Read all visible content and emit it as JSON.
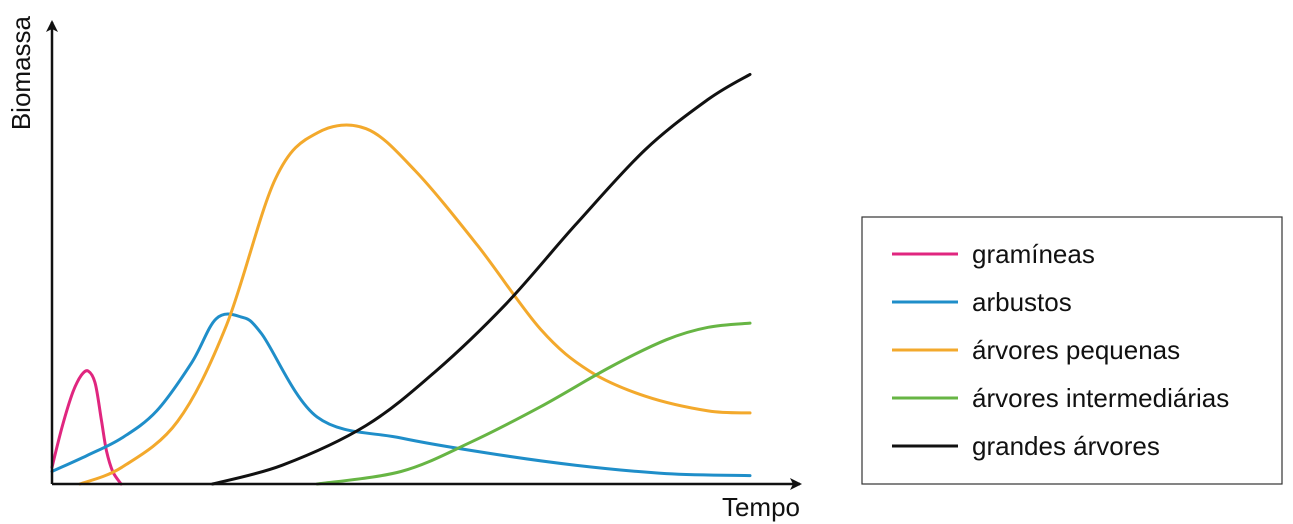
{
  "chart_data": {
    "type": "line",
    "title": "",
    "xlabel": "Tempo",
    "ylabel": "Biomassa",
    "grid": false,
    "ticks": false,
    "legend_position": "right",
    "xlim": [
      0,
      100
    ],
    "ylim": [
      0,
      100
    ],
    "series": [
      {
        "name": "gramíneas",
        "color": "#e0267f",
        "points": [
          [
            0,
            4
          ],
          [
            1.5,
            14
          ],
          [
            3,
            22
          ],
          [
            4.2,
            26
          ],
          [
            5.2,
            27
          ],
          [
            6.2,
            24
          ],
          [
            7.1,
            15
          ],
          [
            7.8,
            8
          ],
          [
            8.7,
            3
          ],
          [
            9.9,
            0
          ]
        ]
      },
      {
        "name": "arbustos",
        "color": "#1f8ec9",
        "points": [
          [
            0,
            3
          ],
          [
            5,
            6.8
          ],
          [
            10,
            11
          ],
          [
            15,
            17.5
          ],
          [
            20,
            29
          ],
          [
            23.5,
            39.5
          ],
          [
            27,
            40
          ],
          [
            30,
            36
          ],
          [
            38,
            16
          ],
          [
            50,
            11
          ],
          [
            62,
            7.5
          ],
          [
            75,
            4.5
          ],
          [
            88,
            2.5
          ],
          [
            100,
            2
          ]
        ]
      },
      {
        "name": "árvores pequenas",
        "color": "#f3a92c",
        "points": [
          [
            4,
            0
          ],
          [
            10,
            4
          ],
          [
            18,
            15
          ],
          [
            25,
            38
          ],
          [
            32,
            73
          ],
          [
            38,
            84
          ],
          [
            45,
            85
          ],
          [
            52,
            75
          ],
          [
            61,
            57
          ],
          [
            70,
            37
          ],
          [
            77,
            27
          ],
          [
            85,
            21
          ],
          [
            94,
            17.5
          ],
          [
            100,
            17
          ]
        ]
      },
      {
        "name": "árvores intermediárias",
        "color": "#67b544",
        "points": [
          [
            38,
            0
          ],
          [
            50,
            3
          ],
          [
            60,
            10
          ],
          [
            70,
            18.5
          ],
          [
            80,
            28
          ],
          [
            88,
            34.5
          ],
          [
            94,
            37.5
          ],
          [
            100,
            38.5
          ]
        ]
      },
      {
        "name": "grandes árvores",
        "color": "#111111",
        "points": [
          [
            23,
            0
          ],
          [
            33,
            4.5
          ],
          [
            45,
            14
          ],
          [
            55,
            27
          ],
          [
            65,
            43
          ],
          [
            75,
            62
          ],
          [
            85,
            80
          ],
          [
            94,
            92
          ],
          [
            100,
            98
          ]
        ]
      }
    ]
  }
}
